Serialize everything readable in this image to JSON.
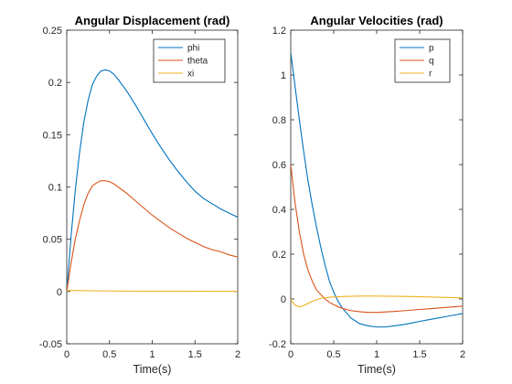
{
  "chart_data": [
    {
      "type": "line",
      "title": "Angular Displacement (rad)",
      "xlabel": "Time(s)",
      "ylabel": "",
      "xlim": [
        0,
        2
      ],
      "ylim": [
        -0.05,
        0.25
      ],
      "xticks": [
        0,
        0.5,
        1,
        1.5,
        2
      ],
      "xtick_labels": [
        "0",
        "0.5",
        "1",
        "1.5",
        "2"
      ],
      "yticks": [
        -0.05,
        0,
        0.05,
        0.1,
        0.15,
        0.2,
        0.25
      ],
      "ytick_labels": [
        "-0.05",
        "0",
        "0.05",
        "0.1",
        "0.15",
        "0.2",
        "0.25"
      ],
      "grid": false,
      "legend_position": "top-right",
      "series": [
        {
          "name": "phi",
          "color": "#0072BD",
          "x": [
            0,
            0.05,
            0.1,
            0.15,
            0.2,
            0.25,
            0.3,
            0.35,
            0.4,
            0.45,
            0.5,
            0.55,
            0.6,
            0.7,
            0.8,
            0.9,
            1.0,
            1.1,
            1.2,
            1.3,
            1.4,
            1.5,
            1.6,
            1.7,
            1.8,
            1.9,
            2.0
          ],
          "y": [
            0,
            0.052,
            0.097,
            0.133,
            0.162,
            0.183,
            0.198,
            0.206,
            0.211,
            0.212,
            0.211,
            0.208,
            0.203,
            0.192,
            0.179,
            0.165,
            0.151,
            0.138,
            0.126,
            0.115,
            0.105,
            0.096,
            0.089,
            0.084,
            0.079,
            0.075,
            0.071
          ]
        },
        {
          "name": "theta",
          "color": "#D95319",
          "x": [
            0,
            0.05,
            0.1,
            0.15,
            0.2,
            0.25,
            0.3,
            0.35,
            0.4,
            0.45,
            0.5,
            0.55,
            0.6,
            0.7,
            0.8,
            0.9,
            1.0,
            1.1,
            1.2,
            1.3,
            1.4,
            1.5,
            1.6,
            1.7,
            1.8,
            1.9,
            2.0
          ],
          "y": [
            0,
            0.027,
            0.05,
            0.068,
            0.083,
            0.094,
            0.101,
            0.104,
            0.106,
            0.106,
            0.105,
            0.103,
            0.1,
            0.094,
            0.087,
            0.08,
            0.073,
            0.067,
            0.061,
            0.056,
            0.051,
            0.047,
            0.043,
            0.04,
            0.038,
            0.035,
            0.033
          ]
        },
        {
          "name": "xi",
          "color": "#EDB120",
          "x": [
            0,
            0.5,
            1.0,
            1.5,
            2.0
          ],
          "y": [
            0.001,
            0.0005,
            0.0003,
            0.0002,
            0.0001
          ]
        }
      ]
    },
    {
      "type": "line",
      "title": "Angular Velocities (rad)",
      "xlabel": "Time(s)",
      "ylabel": "",
      "xlim": [
        0,
        2
      ],
      "ylim": [
        -0.2,
        1.2
      ],
      "xticks": [
        0,
        0.5,
        1,
        1.5,
        2
      ],
      "xtick_labels": [
        "0",
        "0.5",
        "1",
        "1.5",
        "2"
      ],
      "yticks": [
        -0.2,
        0,
        0.2,
        0.4,
        0.6,
        0.8,
        1,
        1.2
      ],
      "ytick_labels": [
        "-0.2",
        "0",
        "0.2",
        "0.4",
        "0.6",
        "0.8",
        "1",
        "1.2"
      ],
      "grid": false,
      "legend_position": "top-right",
      "series": [
        {
          "name": "p",
          "color": "#0072BD",
          "x": [
            0,
            0.05,
            0.1,
            0.15,
            0.2,
            0.25,
            0.3,
            0.35,
            0.4,
            0.45,
            0.5,
            0.55,
            0.6,
            0.7,
            0.8,
            0.9,
            1.0,
            1.1,
            1.2,
            1.3,
            1.4,
            1.5,
            1.6,
            1.7,
            1.8,
            1.9,
            2.0
          ],
          "y": [
            1.1,
            0.95,
            0.8,
            0.66,
            0.53,
            0.42,
            0.32,
            0.23,
            0.15,
            0.08,
            0.03,
            -0.01,
            -0.04,
            -0.085,
            -0.11,
            -0.12,
            -0.125,
            -0.125,
            -0.12,
            -0.115,
            -0.108,
            -0.1,
            -0.093,
            -0.086,
            -0.079,
            -0.072,
            -0.065
          ]
        },
        {
          "name": "q",
          "color": "#D95319",
          "x": [
            0,
            0.05,
            0.1,
            0.15,
            0.2,
            0.25,
            0.3,
            0.35,
            0.4,
            0.45,
            0.5,
            0.55,
            0.6,
            0.7,
            0.8,
            0.9,
            1.0,
            1.1,
            1.2,
            1.3,
            1.4,
            1.5,
            1.6,
            1.7,
            1.8,
            1.9,
            2.0
          ],
          "y": [
            0.6,
            0.43,
            0.3,
            0.2,
            0.13,
            0.08,
            0.04,
            0.02,
            0.0,
            -0.015,
            -0.025,
            -0.035,
            -0.042,
            -0.052,
            -0.057,
            -0.06,
            -0.06,
            -0.058,
            -0.056,
            -0.053,
            -0.05,
            -0.047,
            -0.044,
            -0.041,
            -0.038,
            -0.035,
            -0.032
          ]
        },
        {
          "name": "r",
          "color": "#EDB120",
          "x": [
            0,
            0.03,
            0.06,
            0.1,
            0.15,
            0.2,
            0.25,
            0.3,
            0.35,
            0.4,
            0.5,
            0.6,
            0.7,
            0.8,
            0.9,
            1.0,
            1.2,
            1.4,
            1.6,
            1.8,
            2.0
          ],
          "y": [
            0.0,
            -0.02,
            -0.03,
            -0.035,
            -0.03,
            -0.02,
            -0.01,
            -0.003,
            0.003,
            0.006,
            0.009,
            0.011,
            0.012,
            0.013,
            0.013,
            0.013,
            0.012,
            0.011,
            0.009,
            0.007,
            0.005
          ]
        }
      ]
    }
  ]
}
